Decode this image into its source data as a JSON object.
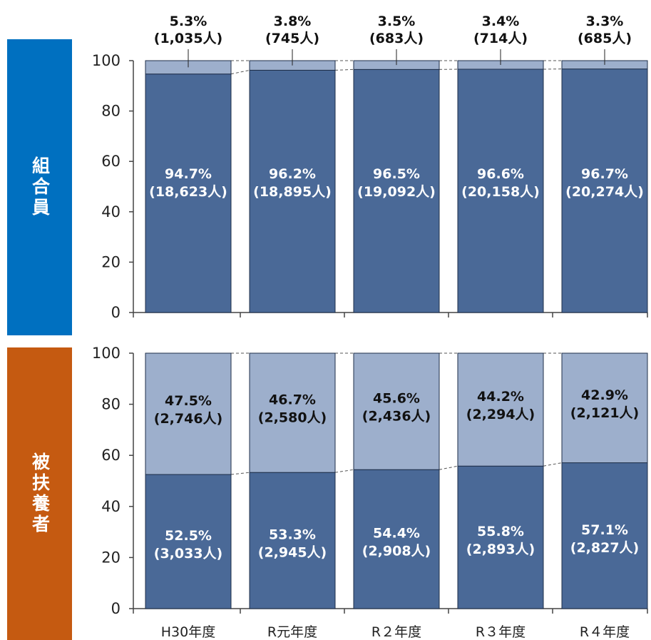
{
  "colors": {
    "dark_bar": "#4a6997",
    "light_bar": "#9dafcc",
    "top_label_bg": "#0070c0",
    "bottom_label_bg": "#c55a11"
  },
  "chart_data": [
    {
      "type": "bar",
      "stacked": true,
      "side_label": "組合員",
      "categories": [
        "H30年度",
        "R元年度",
        "R２年度",
        "R３年度",
        "R４年度"
      ],
      "ylim": [
        0,
        100
      ],
      "yticks": [
        0,
        20,
        40,
        60,
        80,
        100
      ],
      "series": [
        {
          "values": [
            94.7,
            96.2,
            96.5,
            96.6,
            96.7
          ],
          "labels": [
            [
              "94.7%",
              "(18,623人)"
            ],
            [
              "96.2%",
              "(18,895人)"
            ],
            [
              "96.5%",
              "(19,092人)"
            ],
            [
              "96.6%",
              "(20,158人)"
            ],
            [
              "96.7%",
              "(20,274人)"
            ]
          ]
        },
        {
          "values": [
            5.3,
            3.8,
            3.5,
            3.4,
            3.3
          ],
          "labels": [
            [
              "5.3%",
              "(1,035人)"
            ],
            [
              "3.8%",
              "(745人)"
            ],
            [
              "3.5%",
              "(683人)"
            ],
            [
              "3.4%",
              "(714人)"
            ],
            [
              "3.3%",
              "(685人)"
            ]
          ]
        }
      ]
    },
    {
      "type": "bar",
      "stacked": true,
      "side_label": "被扶養者",
      "categories": [
        "H30年度",
        "R元年度",
        "R２年度",
        "R３年度",
        "R４年度"
      ],
      "ylim": [
        0,
        100
      ],
      "yticks": [
        0,
        20,
        40,
        60,
        80,
        100
      ],
      "series": [
        {
          "values": [
            52.5,
            53.3,
            54.4,
            55.8,
            57.1
          ],
          "labels": [
            [
              "52.5%",
              "(3,033人)"
            ],
            [
              "53.3%",
              "(2,945人)"
            ],
            [
              "54.4%",
              "(2,908人)"
            ],
            [
              "55.8%",
              "(2,893人)"
            ],
            [
              "57.1%",
              "(2,827人)"
            ]
          ]
        },
        {
          "values": [
            47.5,
            46.7,
            45.6,
            44.2,
            42.9
          ],
          "labels": [
            [
              "47.5%",
              "(2,746人)"
            ],
            [
              "46.7%",
              "(2,580人)"
            ],
            [
              "45.6%",
              "(2,436人)"
            ],
            [
              "44.2%",
              "(2,294人)"
            ],
            [
              "42.9%",
              "(2,121人)"
            ]
          ]
        }
      ]
    }
  ]
}
